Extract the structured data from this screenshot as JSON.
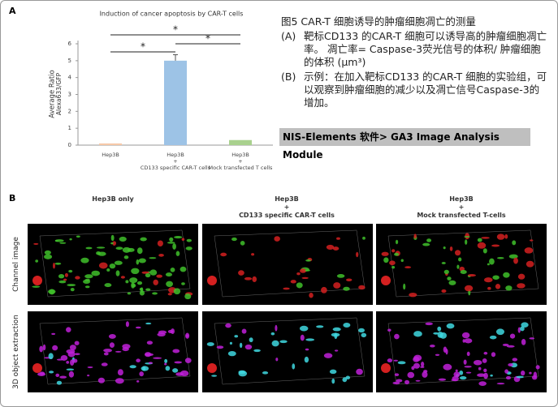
{
  "panel_a_label": "A",
  "chart_data": {
    "type": "bar",
    "title": "Induction of cancer apoptosis by CAR-T cells",
    "y_label": [
      "Average Ratio",
      "Alexa633/GFP"
    ],
    "categories": [
      "Hep3B",
      "Hep3B\n+\nCD133 specific CAR-T cells",
      "Hep3B\n+\nMock transfected T cells"
    ],
    "values": [
      0.1,
      5.0,
      0.3
    ],
    "errors": [
      null,
      0.35,
      null
    ],
    "colors": [
      "#f6c8a8",
      "#9dc3e6",
      "#a9d18e"
    ],
    "ylim": [
      0,
      6
    ],
    "yticks": [
      0,
      1,
      2,
      3,
      4,
      5,
      6
    ],
    "annotations": [
      "*",
      "*",
      "*"
    ]
  },
  "caption": {
    "title": "图5 CAR-T 细胞诱导的肿瘤细胞凋亡的测量",
    "items": [
      {
        "marker": "(A)",
        "text": "靶标CD133 的CAR-T 细胞可以诱导高的肿瘤细胞凋亡率。 凋亡率= Caspase-3荧光信号的体积/ 肿瘤细胞的体积 (μm³)"
      },
      {
        "marker": "(B)",
        "text": "示例：在加入靶标CD133 的CAR-T 细胞的实验组，可以观察到肿瘤细胞的减少以及凋亡信号Caspase-3的增加。"
      }
    ]
  },
  "banner": "NIS-Elements 软件> GA3 Image Analysis Module",
  "panel_b": {
    "label": "B",
    "columns": [
      "Hep3B only",
      "Hep3B\n+\nCD133 specific CAR-T cells",
      "Hep3B\n+\nMock transfected T-cells"
    ],
    "rows": [
      "Channel image",
      "3D object extraction"
    ]
  }
}
